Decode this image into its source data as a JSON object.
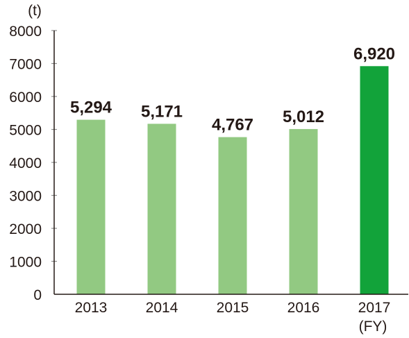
{
  "chart_data": {
    "type": "bar",
    "categories": [
      "2013",
      "2014",
      "2015",
      "2016",
      "2017"
    ],
    "values": [
      5294,
      5171,
      4767,
      5012,
      6920
    ],
    "value_labels": [
      "5,294",
      "5,171",
      "4,767",
      "5,012",
      "6,920"
    ],
    "ylabel": "(t)",
    "xunit": "(FY)",
    "ylim": [
      0,
      8000
    ],
    "yticks": [
      0,
      1000,
      2000,
      3000,
      4000,
      5000,
      6000,
      7000,
      8000
    ],
    "grid": true,
    "legend": "none",
    "colors": {
      "bar": "#92c982",
      "highlight_bar": "#12a33a",
      "text": "#231815",
      "grid": "#8c8c8c"
    },
    "highlight_index": 4
  }
}
